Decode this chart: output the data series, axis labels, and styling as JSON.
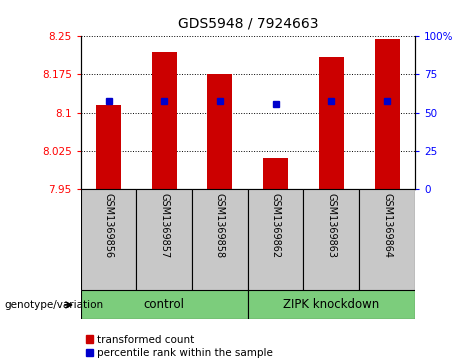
{
  "title": "GDS5948 / 7924663",
  "samples": [
    "GSM1369856",
    "GSM1369857",
    "GSM1369858",
    "GSM1369862",
    "GSM1369863",
    "GSM1369864"
  ],
  "bar_tops": [
    8.115,
    8.22,
    8.175,
    8.01,
    8.21,
    8.245
  ],
  "bar_bottom": 7.95,
  "blue_y": [
    8.122,
    8.122,
    8.122,
    8.117,
    8.122,
    8.122
  ],
  "ylim_left": [
    7.95,
    8.25
  ],
  "ylim_right": [
    0,
    100
  ],
  "yticks_left": [
    7.95,
    8.025,
    8.1,
    8.175,
    8.25
  ],
  "yticks_right": [
    0,
    25,
    50,
    75,
    100
  ],
  "ytick_labels_left": [
    "7.95",
    "8.025",
    "8.1",
    "8.175",
    "8.25"
  ],
  "ytick_labels_right": [
    "0",
    "25",
    "50",
    "75",
    "100%"
  ],
  "bar_color": "#cc0000",
  "blue_color": "#0000cc",
  "group1_label": "control",
  "group2_label": "ZIPK knockdown",
  "group_color": "#7CCD7C",
  "group1_indices": [
    0,
    1,
    2
  ],
  "group2_indices": [
    3,
    4,
    5
  ],
  "genotype_label": "genotype/variation",
  "legend_items": [
    "transformed count",
    "percentile rank within the sample"
  ],
  "background_color": "#ffffff",
  "label_area_bg": "#c8c8c8",
  "bar_width": 0.45
}
